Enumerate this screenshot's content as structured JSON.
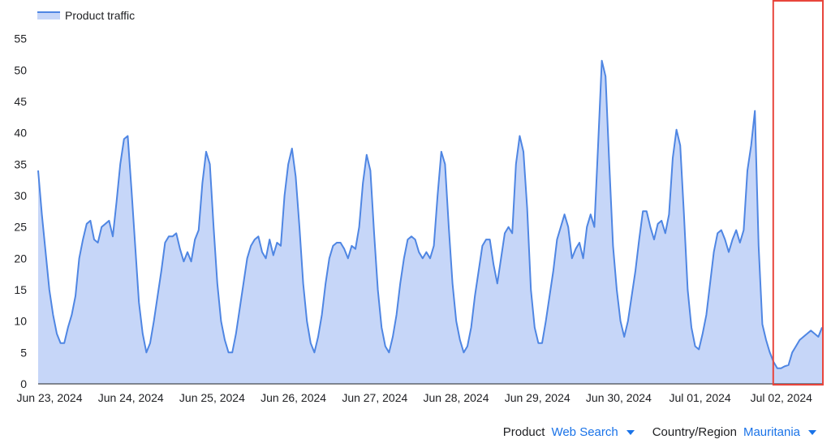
{
  "chart_data": {
    "type": "area",
    "series": [
      {
        "name": "Product traffic",
        "values": [
          34,
          27,
          21,
          15,
          11,
          8,
          6.5,
          6.5,
          9,
          11,
          14,
          20,
          23,
          25.5,
          26,
          23,
          22.5,
          25,
          25.5,
          26,
          23.5,
          29,
          35,
          39,
          39.5,
          31,
          22,
          13,
          8,
          5,
          6.5,
          10,
          14,
          18,
          22.5,
          23.5,
          23.5,
          24,
          21.5,
          19.5,
          21,
          19.5,
          23,
          24.5,
          32,
          37,
          35,
          25,
          16,
          10,
          7,
          5,
          5,
          8,
          12,
          16,
          20,
          22,
          23,
          23.5,
          21,
          20,
          23,
          20.5,
          22.5,
          22,
          30,
          35,
          37.5,
          33,
          25,
          16,
          10,
          6.5,
          5,
          7.5,
          11,
          16,
          20,
          22,
          22.5,
          22.5,
          21.5,
          20,
          22,
          21.5,
          25,
          32,
          36.5,
          34,
          24,
          15,
          9,
          6,
          5,
          7.5,
          11,
          16,
          20,
          23,
          23.5,
          23,
          21,
          20,
          21,
          20,
          22,
          30,
          37,
          35,
          25,
          16,
          10,
          7,
          5,
          6,
          9,
          14,
          18,
          22,
          23,
          23,
          19,
          16,
          20,
          24,
          25,
          24,
          35,
          39.5,
          37,
          28,
          15,
          9,
          6.5,
          6.5,
          10,
          14,
          18,
          23,
          25,
          27,
          25,
          20,
          21.5,
          22.5,
          20,
          25,
          27,
          25,
          38,
          51.5,
          49,
          35,
          22,
          15,
          10,
          7.5,
          10,
          14,
          18,
          23,
          27.5,
          27.5,
          25,
          23,
          25.5,
          26,
          24,
          27,
          36,
          40.5,
          38,
          27,
          15,
          9,
          6,
          5.5,
          8,
          11,
          16,
          21,
          24,
          24.5,
          23,
          21,
          23,
          24.5,
          22.5,
          24.5,
          34,
          38,
          43.5,
          22,
          9.5,
          7,
          5,
          3.5,
          2.5,
          2.5,
          2.8,
          3,
          5,
          6,
          7,
          7.5,
          8,
          8.5,
          8,
          7.5,
          9
        ]
      }
    ],
    "x_tick_labels": [
      "Jun 23, 2024",
      "Jun 24, 2024",
      "Jun 25, 2024",
      "Jun 26, 2024",
      "Jun 27, 2024",
      "Jun 28, 2024",
      "Jun 29, 2024",
      "Jun 30, 2024",
      "Jul 01, 2024",
      "Jul 02, 2024"
    ],
    "y_ticks": [
      0,
      5,
      10,
      15,
      20,
      25,
      30,
      35,
      40,
      45,
      50,
      55
    ],
    "ylim": [
      0,
      60
    ],
    "x_range_days": [
      0,
      9.52
    ],
    "grid": false,
    "legend_position": "top-left",
    "highlight_box": {
      "from_day": 9.0,
      "to_day": 9.52,
      "color": "#e8453c"
    },
    "colors": {
      "line": "#4f86e3",
      "fill": "#c6d6f8"
    }
  },
  "filters": {
    "product": {
      "label": "Product",
      "value": "Web Search"
    },
    "region": {
      "label": "Country/Region",
      "value": "Mauritania"
    }
  }
}
